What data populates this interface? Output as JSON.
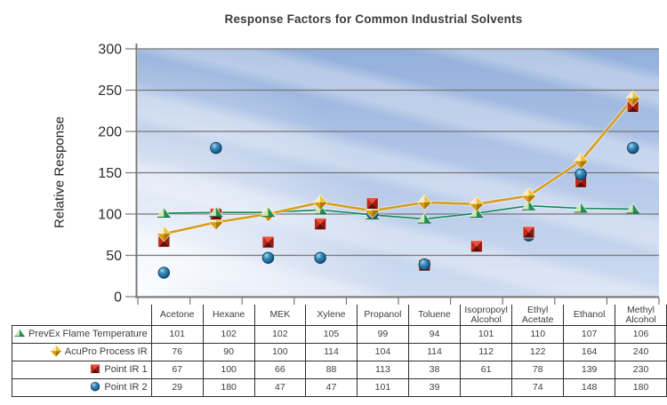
{
  "chart_data": {
    "type": "line",
    "title": "Response Factors for Common Industrial Solvents",
    "ylabel": "Relative Response",
    "xlabel": "",
    "ylim": [
      0,
      300
    ],
    "ytick_interval": 50,
    "ytick_labels": [
      "0",
      "50",
      "100",
      "150",
      "200",
      "250",
      "300"
    ],
    "grid": true,
    "legend_position": "table-left-of-data-table",
    "plot_background": "blue gradient with diagonal light stripes",
    "categories": [
      "Acetone",
      "Hexane",
      "MEK",
      "Xylene",
      "Propanol",
      "Toluene",
      "Isopropoyl Alcohol",
      "Ethyl Acetate",
      "Ethanol",
      "Methyl Alcohol"
    ],
    "series": [
      {
        "name": "PrevEx Flame Temperature",
        "marker": "triangle",
        "marker_color": "#209152",
        "line_color": "#13865a",
        "has_line": true,
        "values": [
          101,
          102,
          102,
          105,
          99,
          94,
          101,
          110,
          107,
          106
        ]
      },
      {
        "name": "AcuPro Process IR",
        "marker": "diamond",
        "marker_color": "#e2a91e",
        "line_color": "#d89d1d",
        "has_line": true,
        "values": [
          76,
          90,
          100,
          114,
          104,
          114,
          112,
          122,
          164,
          240
        ]
      },
      {
        "name": "Point IR 1",
        "marker": "square",
        "marker_color": "#c22a1e",
        "line_color": "#c22a1e",
        "has_line": false,
        "values": [
          67,
          100,
          66,
          88,
          113,
          38,
          61,
          78,
          139,
          230
        ]
      },
      {
        "name": "Point IR 2",
        "marker": "circle",
        "marker_color": "#1d6f9e",
        "line_color": "#1d6f9e",
        "has_line": false,
        "values": [
          29,
          180,
          47,
          47,
          101,
          39,
          null,
          74,
          148,
          180
        ]
      }
    ],
    "colors": {
      "gridline": "#767676",
      "axis": "#787878",
      "tick_label": "#2b2b2b",
      "title_text": "#3b3b3b",
      "table_border": "#2f2f2f",
      "table_text": "#3d3d3d"
    }
  }
}
